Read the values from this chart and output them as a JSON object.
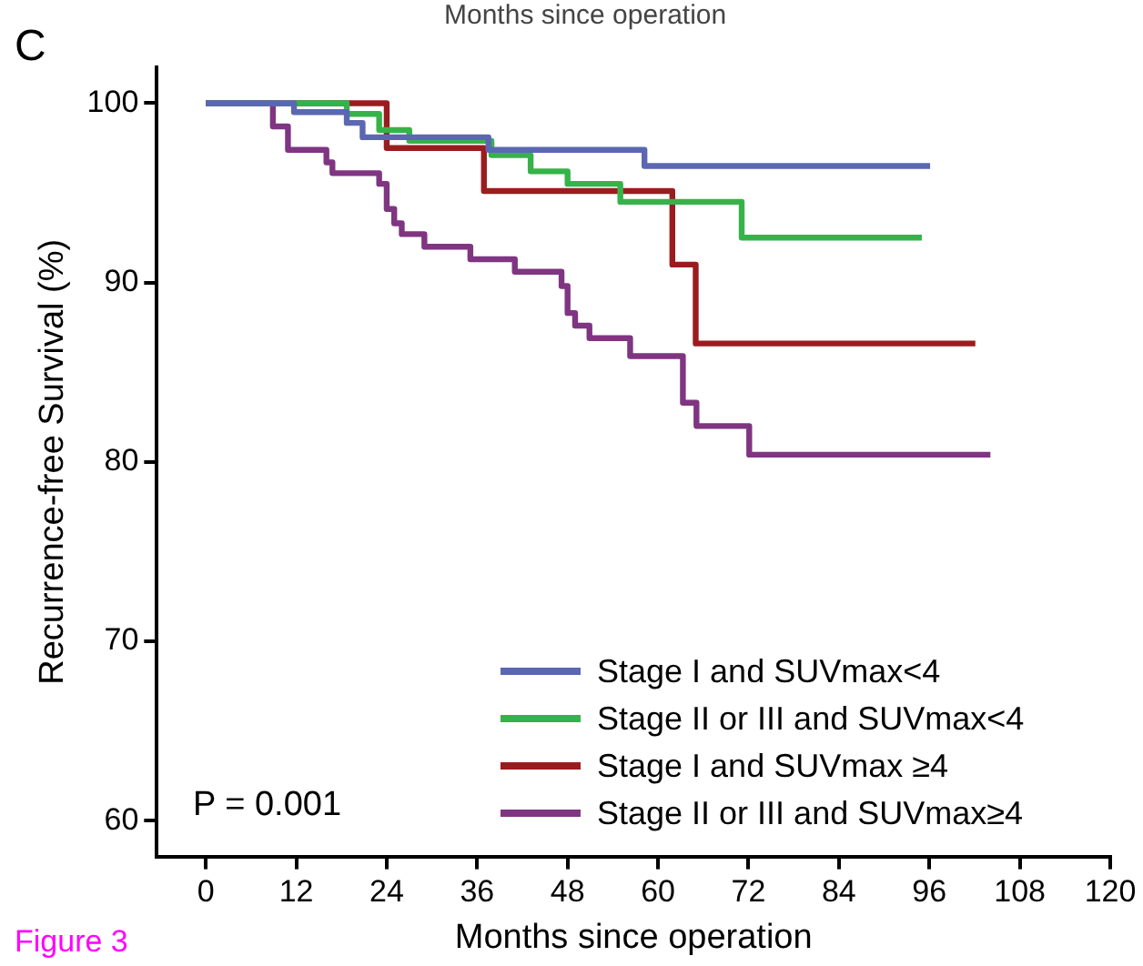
{
  "chart_data": {
    "type": "step",
    "xlabel": "Months since operation",
    "ylabel": "Recurrence-free Survival (%)",
    "annotations": [
      "C",
      "P = 0.001",
      "Figure 3",
      "Months since operation"
    ],
    "xlim": [
      -6.5,
      120
    ],
    "xticks": [
      0,
      12,
      24,
      36,
      48,
      60,
      72,
      84,
      96,
      108,
      120
    ],
    "ylim": [
      58,
      102
    ],
    "yticks": [
      60,
      70,
      80,
      90,
      100
    ],
    "grid": false,
    "legend": "bottom right",
    "marker": "none",
    "line_style": "solid",
    "series": [
      {
        "name": "Stage I and SUVmax<4",
        "color": "#5b67b3",
        "x": [
          0,
          11.7,
          18.7,
          20.8,
          37.5,
          58.2,
          96.1
        ],
        "values": [
          100,
          99.5,
          98.9,
          98.1,
          97.4,
          96.5,
          96.5
        ]
      },
      {
        "name": "Stage II or III and SUVmax<4",
        "color": "#35b34a",
        "x": [
          0,
          18.7,
          23,
          27,
          37.9,
          43.1,
          48,
          55,
          71.1,
          95
        ],
        "values": [
          100,
          99.4,
          98.5,
          97.9,
          97.1,
          96.2,
          95.5,
          94.5,
          92.5,
          92.5
        ]
      },
      {
        "name": "Stage I and SUVmax ≥4",
        "color": "#9b1c1f",
        "x": [
          0,
          24,
          36.9,
          61.9,
          65,
          102.1
        ],
        "values": [
          100,
          97.5,
          95.1,
          91,
          86.6,
          86.6
        ]
      },
      {
        "name": "Stage II or III and SUVmax≥4",
        "color": "#7f3582",
        "x": [
          0,
          8.9,
          10.9,
          16,
          16.8,
          23,
          24,
          25,
          26,
          29,
          35.1,
          41,
          47.2,
          48,
          49,
          50.9,
          56.3,
          63.3,
          65.1,
          72.1,
          104.1
        ],
        "values": [
          100,
          98.7,
          97.4,
          96.7,
          96.1,
          95.5,
          94.1,
          93.3,
          92.7,
          92,
          91.3,
          90.6,
          89.8,
          88.3,
          87.6,
          86.9,
          85.9,
          83.3,
          82,
          80.4,
          80.4
        ]
      }
    ]
  }
}
